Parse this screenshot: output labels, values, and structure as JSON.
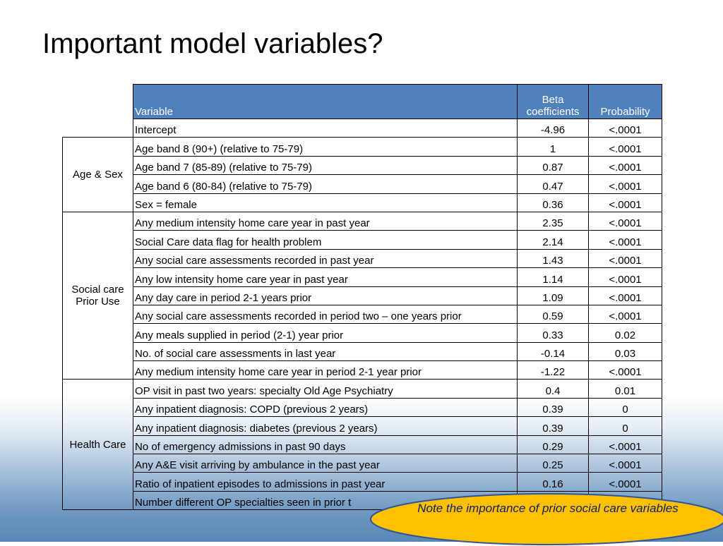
{
  "title": "Important model variables?",
  "table": {
    "header": [
      "Variable",
      "Beta coefficients",
      "Probability"
    ],
    "intercept": {
      "variable": "Intercept",
      "beta": "-4.96",
      "probability": "<.0001"
    },
    "groups": [
      {
        "label": "Age & Sex",
        "rows": [
          {
            "variable": "Age band 8 (90+) (relative to 75-79)",
            "beta": "1",
            "probability": "<.0001"
          },
          {
            "variable": "Age band 7 (85-89) (relative to 75-79)",
            "beta": "0.87",
            "probability": "<.0001"
          },
          {
            "variable": "Age band 6 (80-84) (relative to 75-79)",
            "beta": "0.47",
            "probability": "<.0001"
          },
          {
            "variable": "Sex = female",
            "beta": "0.36",
            "probability": "<.0001"
          }
        ]
      },
      {
        "label": "Social care Prior Use",
        "rows": [
          {
            "variable": "Any medium intensity home care year in past year",
            "beta": "2.35",
            "probability": "<.0001"
          },
          {
            "variable": "Social Care data flag for health problem",
            "beta": "2.14",
            "probability": "<.0001"
          },
          {
            "variable": "Any social care assessments recorded in past year",
            "beta": "1.43",
            "probability": "<.0001"
          },
          {
            "variable": "Any low intensity home care year in past year",
            "beta": "1.14",
            "probability": "<.0001"
          },
          {
            "variable": "Any day care in period 2-1 years prior",
            "beta": "1.09",
            "probability": "<.0001"
          },
          {
            "variable": "Any social care assessments recorded in period two – one years prior",
            "beta": "0.59",
            "probability": "<.0001"
          },
          {
            "variable": "Any meals supplied in period (2-1) year prior",
            "beta": "0.33",
            "probability": "0.02"
          },
          {
            "variable": "No. of social care assessments in last year",
            "beta": "-0.14",
            "probability": "0.03"
          },
          {
            "variable": "Any medium intensity home care year in period 2-1 year prior",
            "beta": "-1.22",
            "probability": "<.0001"
          }
        ]
      },
      {
        "label": "Health Care",
        "rows": [
          {
            "variable": "OP visit in past two years: specialty Old Age Psychiatry",
            "beta": "0.4",
            "probability": "0.01"
          },
          {
            "variable": "Any inpatient diagnosis: COPD (previous 2 years)",
            "beta": "0.39",
            "probability": "0"
          },
          {
            "variable": "Any inpatient diagnosis: diabetes (previous 2 years)",
            "beta": "0.39",
            "probability": "0"
          },
          {
            "variable": "No of emergency admissions in past 90 days",
            "beta": "0.29",
            "probability": "<.0001"
          },
          {
            "variable": "Any A&E visit arriving by ambulance in the past year",
            "beta": "0.25",
            "probability": "<.0001"
          },
          {
            "variable": "Ratio of inpatient episodes to admissions in past year",
            "beta": "0.16",
            "probability": "<.0001"
          },
          {
            "variable": "Number different OP specialties seen in prior t"
          }
        ]
      }
    ]
  },
  "note": "Note the importance of prior social care variables"
}
